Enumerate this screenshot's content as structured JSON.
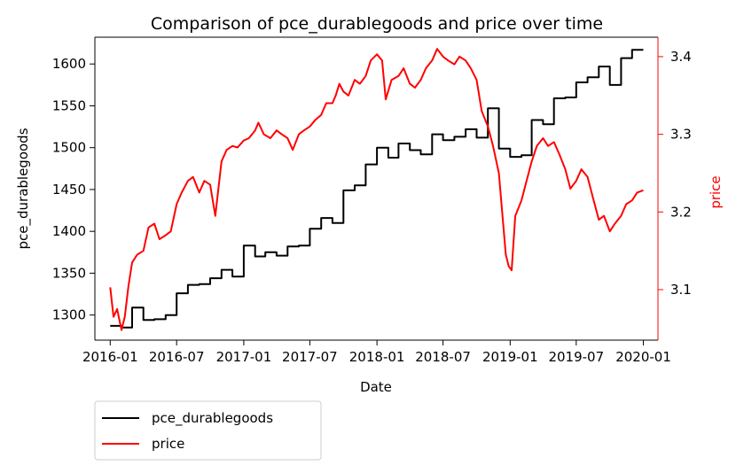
{
  "chart_data": {
    "type": "line",
    "title": "Comparison of pce_durablegoods and price over time",
    "xlabel": "Date",
    "x_axis": {
      "type": "date",
      "range": [
        "2015-11-20",
        "2020-02-10"
      ],
      "ticks": [
        {
          "date": "2016-01-01",
          "label": "2016-01"
        },
        {
          "date": "2016-07-01",
          "label": "2016-07"
        },
        {
          "date": "2017-01-01",
          "label": "2017-01"
        },
        {
          "date": "2017-07-01",
          "label": "2017-07"
        },
        {
          "date": "2018-01-01",
          "label": "2018-01"
        },
        {
          "date": "2018-07-01",
          "label": "2018-07"
        },
        {
          "date": "2019-01-01",
          "label": "2019-01"
        },
        {
          "date": "2019-07-01",
          "label": "2019-07"
        },
        {
          "date": "2020-01-01",
          "label": "2020-01"
        }
      ]
    },
    "y_left": {
      "label": "pce_durablegoods",
      "range": [
        1270,
        1632
      ],
      "ticks": [
        1300,
        1350,
        1400,
        1450,
        1500,
        1550,
        1600
      ],
      "color": "#000000"
    },
    "y_right": {
      "label": "price",
      "range": [
        3.035,
        3.425
      ],
      "ticks": [
        3.1,
        3.2,
        3.3,
        3.4
      ],
      "color": "#ff0000"
    },
    "legend_position": "below-left",
    "series": [
      {
        "name": "pce_durablegoods",
        "axis": "left",
        "color": "#000000",
        "step": true,
        "points": [
          [
            "2016-01-01",
            1287
          ],
          [
            "2016-02-01",
            1285
          ],
          [
            "2016-03-01",
            1309
          ],
          [
            "2016-04-01",
            1294
          ],
          [
            "2016-05-01",
            1295
          ],
          [
            "2016-06-01",
            1300
          ],
          [
            "2016-07-01",
            1326
          ],
          [
            "2016-08-01",
            1336
          ],
          [
            "2016-09-01",
            1337
          ],
          [
            "2016-10-01",
            1344
          ],
          [
            "2016-11-01",
            1354
          ],
          [
            "2016-12-01",
            1346
          ],
          [
            "2017-01-01",
            1383
          ],
          [
            "2017-02-01",
            1370
          ],
          [
            "2017-03-01",
            1375
          ],
          [
            "2017-04-01",
            1371
          ],
          [
            "2017-05-01",
            1382
          ],
          [
            "2017-06-01",
            1383
          ],
          [
            "2017-07-01",
            1403
          ],
          [
            "2017-08-01",
            1416
          ],
          [
            "2017-09-01",
            1410
          ],
          [
            "2017-10-01",
            1449
          ],
          [
            "2017-11-01",
            1455
          ],
          [
            "2017-12-01",
            1480
          ],
          [
            "2018-01-01",
            1500
          ],
          [
            "2018-02-01",
            1488
          ],
          [
            "2018-03-01",
            1505
          ],
          [
            "2018-04-01",
            1497
          ],
          [
            "2018-05-01",
            1492
          ],
          [
            "2018-06-01",
            1516
          ],
          [
            "2018-07-01",
            1509
          ],
          [
            "2018-08-01",
            1513
          ],
          [
            "2018-09-01",
            1522
          ],
          [
            "2018-10-01",
            1512
          ],
          [
            "2018-11-01",
            1547
          ],
          [
            "2018-12-01",
            1499
          ],
          [
            "2019-01-01",
            1489
          ],
          [
            "2019-02-01",
            1491
          ],
          [
            "2019-03-01",
            1533
          ],
          [
            "2019-04-01",
            1528
          ],
          [
            "2019-05-01",
            1559
          ],
          [
            "2019-06-01",
            1560
          ],
          [
            "2019-07-01",
            1578
          ],
          [
            "2019-08-01",
            1584
          ],
          [
            "2019-09-01",
            1597
          ],
          [
            "2019-10-01",
            1575
          ],
          [
            "2019-11-01",
            1607
          ],
          [
            "2019-12-01",
            1617
          ],
          [
            "2020-01-01",
            1617
          ]
        ]
      },
      {
        "name": "price",
        "axis": "right",
        "color": "#ff0000",
        "step": false,
        "points": [
          [
            "2016-01-01",
            3.103
          ],
          [
            "2016-01-10",
            3.065
          ],
          [
            "2016-01-20",
            3.075
          ],
          [
            "2016-02-01",
            3.048
          ],
          [
            "2016-02-10",
            3.065
          ],
          [
            "2016-02-20",
            3.105
          ],
          [
            "2016-03-01",
            3.135
          ],
          [
            "2016-03-15",
            3.145
          ],
          [
            "2016-04-01",
            3.15
          ],
          [
            "2016-04-15",
            3.18
          ],
          [
            "2016-05-01",
            3.185
          ],
          [
            "2016-05-15",
            3.165
          ],
          [
            "2016-06-01",
            3.17
          ],
          [
            "2016-06-15",
            3.175
          ],
          [
            "2016-07-01",
            3.21
          ],
          [
            "2016-07-15",
            3.225
          ],
          [
            "2016-08-01",
            3.24
          ],
          [
            "2016-08-15",
            3.245
          ],
          [
            "2016-09-01",
            3.225
          ],
          [
            "2016-09-15",
            3.24
          ],
          [
            "2016-10-01",
            3.235
          ],
          [
            "2016-10-15",
            3.195
          ],
          [
            "2016-11-01",
            3.265
          ],
          [
            "2016-11-15",
            3.28
          ],
          [
            "2016-12-01",
            3.285
          ],
          [
            "2016-12-15",
            3.283
          ],
          [
            "2017-01-01",
            3.292
          ],
          [
            "2017-01-15",
            3.295
          ],
          [
            "2017-02-01",
            3.305
          ],
          [
            "2017-02-10",
            3.315
          ],
          [
            "2017-02-25",
            3.3
          ],
          [
            "2017-03-15",
            3.295
          ],
          [
            "2017-04-01",
            3.305
          ],
          [
            "2017-04-15",
            3.3
          ],
          [
            "2017-05-01",
            3.295
          ],
          [
            "2017-05-15",
            3.28
          ],
          [
            "2017-06-01",
            3.3
          ],
          [
            "2017-06-15",
            3.305
          ],
          [
            "2017-07-01",
            3.31
          ],
          [
            "2017-07-15",
            3.318
          ],
          [
            "2017-08-01",
            3.325
          ],
          [
            "2017-08-15",
            3.34
          ],
          [
            "2017-09-01",
            3.34
          ],
          [
            "2017-09-10",
            3.35
          ],
          [
            "2017-09-20",
            3.365
          ],
          [
            "2017-10-01",
            3.355
          ],
          [
            "2017-10-15",
            3.35
          ],
          [
            "2017-11-01",
            3.37
          ],
          [
            "2017-11-15",
            3.365
          ],
          [
            "2017-12-01",
            3.375
          ],
          [
            "2017-12-15",
            3.395
          ],
          [
            "2018-01-01",
            3.403
          ],
          [
            "2018-01-15",
            3.395
          ],
          [
            "2018-01-25",
            3.345
          ],
          [
            "2018-02-10",
            3.37
          ],
          [
            "2018-03-01",
            3.375
          ],
          [
            "2018-03-15",
            3.385
          ],
          [
            "2018-04-01",
            3.365
          ],
          [
            "2018-04-15",
            3.36
          ],
          [
            "2018-05-01",
            3.37
          ],
          [
            "2018-05-15",
            3.385
          ],
          [
            "2018-06-01",
            3.395
          ],
          [
            "2018-06-15",
            3.41
          ],
          [
            "2018-07-01",
            3.4
          ],
          [
            "2018-07-15",
            3.395
          ],
          [
            "2018-08-01",
            3.39
          ],
          [
            "2018-08-15",
            3.4
          ],
          [
            "2018-09-01",
            3.395
          ],
          [
            "2018-09-15",
            3.385
          ],
          [
            "2018-10-01",
            3.37
          ],
          [
            "2018-10-15",
            3.33
          ],
          [
            "2018-11-01",
            3.31
          ],
          [
            "2018-11-15",
            3.285
          ],
          [
            "2018-12-01",
            3.25
          ],
          [
            "2018-12-10",
            3.2
          ],
          [
            "2018-12-20",
            3.145
          ],
          [
            "2018-12-28",
            3.13
          ],
          [
            "2019-01-05",
            3.125
          ],
          [
            "2019-01-15",
            3.195
          ],
          [
            "2019-02-01",
            3.215
          ],
          [
            "2019-02-15",
            3.24
          ],
          [
            "2019-03-01",
            3.265
          ],
          [
            "2019-03-15",
            3.285
          ],
          [
            "2019-04-01",
            3.295
          ],
          [
            "2019-04-15",
            3.285
          ],
          [
            "2019-05-01",
            3.29
          ],
          [
            "2019-05-15",
            3.275
          ],
          [
            "2019-06-01",
            3.255
          ],
          [
            "2019-06-15",
            3.23
          ],
          [
            "2019-07-01",
            3.24
          ],
          [
            "2019-07-15",
            3.255
          ],
          [
            "2019-08-01",
            3.245
          ],
          [
            "2019-08-15",
            3.22
          ],
          [
            "2019-09-01",
            3.19
          ],
          [
            "2019-09-15",
            3.195
          ],
          [
            "2019-10-01",
            3.175
          ],
          [
            "2019-10-15",
            3.185
          ],
          [
            "2019-11-01",
            3.195
          ],
          [
            "2019-11-15",
            3.21
          ],
          [
            "2019-12-01",
            3.215
          ],
          [
            "2019-12-15",
            3.225
          ],
          [
            "2020-01-01",
            3.228
          ]
        ]
      }
    ]
  }
}
